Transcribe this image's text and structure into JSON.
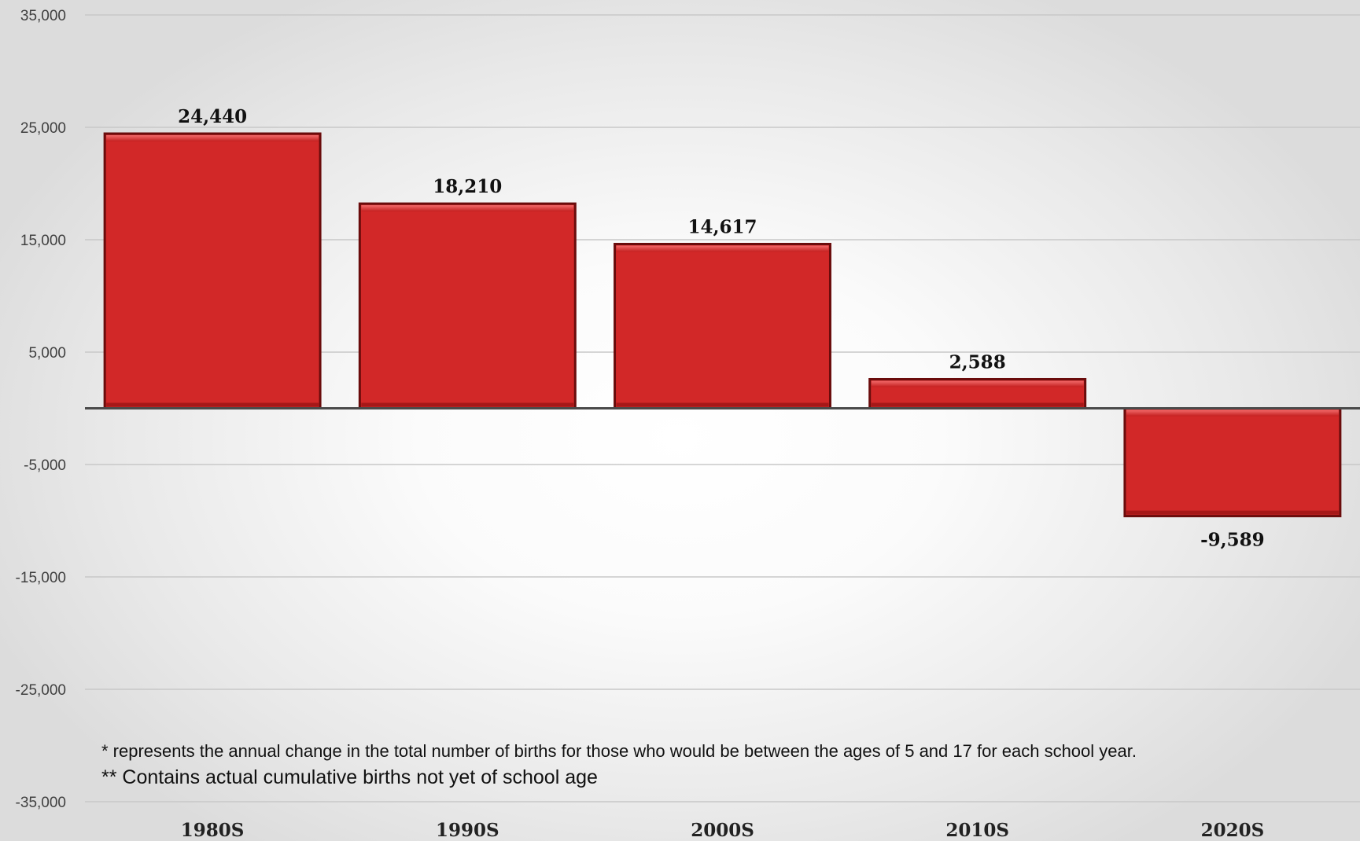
{
  "chart_data": {
    "type": "bar",
    "categories": [
      "1980S",
      "1990S",
      "2000S",
      "2010S",
      "2020S"
    ],
    "values": [
      24440,
      18210,
      14617,
      2588,
      -9589
    ],
    "data_labels": [
      "24,440",
      "18,210",
      "14,617",
      "2,588",
      "-9,589"
    ],
    "ylim": [
      -35000,
      35000
    ],
    "yticks": [
      35000,
      25000,
      15000,
      5000,
      -5000,
      -15000,
      -25000,
      -35000
    ],
    "ytick_labels": [
      "35,000",
      "25,000",
      "15,000",
      "5,000",
      "-5,000",
      "-15,000",
      "-25,000",
      "-35,000"
    ],
    "grid": true,
    "bar_color": "#d22828",
    "footnotes": [
      "* represents the annual change in the total number of births for those who would be between the ages of 5 and 17 for each school year.",
      "** Contains actual cumulative births not yet of school age"
    ]
  }
}
